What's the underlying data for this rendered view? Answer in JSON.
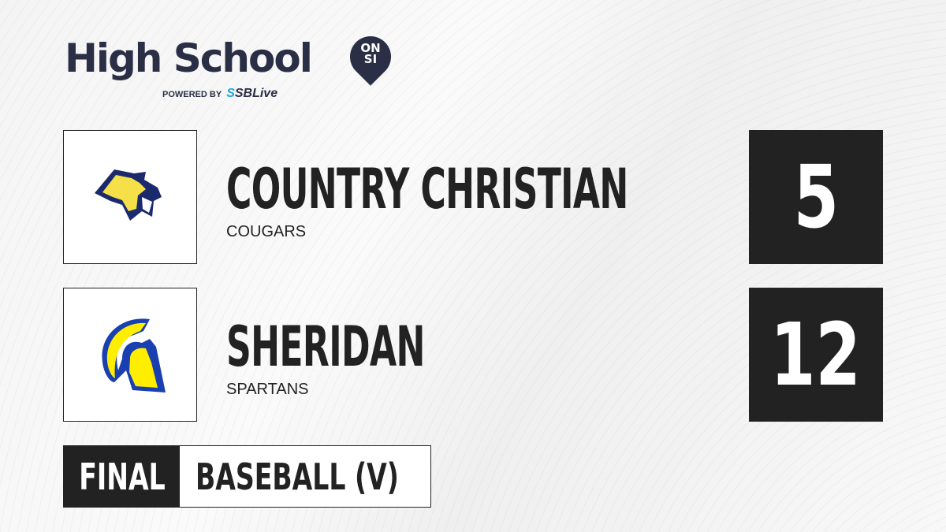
{
  "brand": {
    "title": "High School",
    "badge_top": "ON",
    "badge_bottom": "SI",
    "powered_by": "POWERED BY",
    "partner_prefix": "S",
    "partner": "SBLive"
  },
  "teams": [
    {
      "name": "COUNTRY CHRISTIAN",
      "mascot": "COUGARS",
      "score": "5",
      "logo": "cougar-logo"
    },
    {
      "name": "SHERIDAN",
      "mascot": "SPARTANS",
      "score": "12",
      "logo": "spartan-logo"
    }
  ],
  "status": {
    "state": "FINAL",
    "sport": "BASEBALL (V)"
  },
  "colors": {
    "dark": "#222222",
    "navy": "#2b2f45",
    "gold": "#f5e04a",
    "blue": "#1a3fb0",
    "yellow": "#ffee00"
  }
}
